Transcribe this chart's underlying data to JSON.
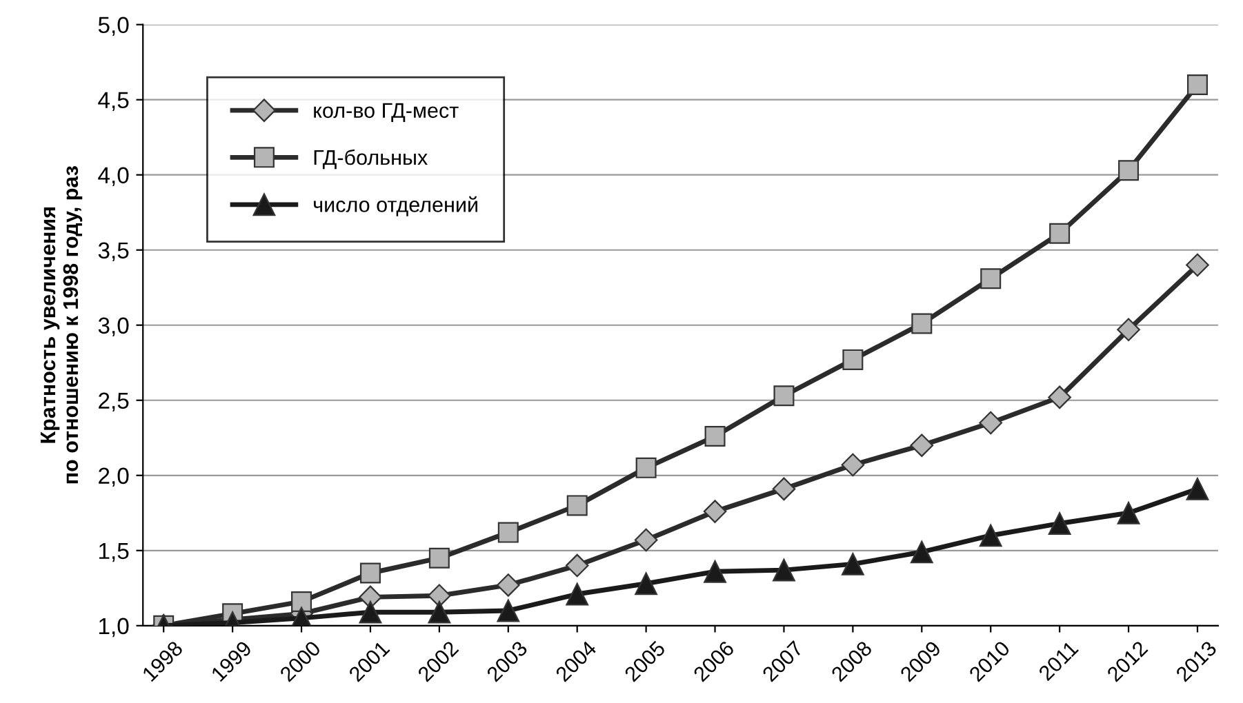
{
  "chart_data": {
    "type": "line",
    "ylabel": "Кратность увеличения\nпо отношению к 1998 году, раз",
    "categories": [
      "1998",
      "1999",
      "2000",
      "2001",
      "2002",
      "2003",
      "2004",
      "2005",
      "2006",
      "2007",
      "2008",
      "2009",
      "2010",
      "2011",
      "2012",
      "2013"
    ],
    "series": [
      {
        "name": "кол-во ГД-мест",
        "color": "#2b2b2b",
        "marker": "diamond",
        "values": [
          1.0,
          1.04,
          1.08,
          1.19,
          1.2,
          1.27,
          1.4,
          1.57,
          1.76,
          1.91,
          2.07,
          2.2,
          2.35,
          2.52,
          2.97,
          3.4
        ]
      },
      {
        "name": "ГД-больных",
        "color": "#2b2b2b",
        "marker": "square",
        "values": [
          1.0,
          1.08,
          1.16,
          1.35,
          1.45,
          1.62,
          1.8,
          2.05,
          2.26,
          2.53,
          2.77,
          3.01,
          3.31,
          3.61,
          4.03,
          4.6
        ]
      },
      {
        "name": "число отделений",
        "color": "#1a1a1a",
        "marker": "triangle",
        "values": [
          1.0,
          1.02,
          1.05,
          1.09,
          1.09,
          1.1,
          1.21,
          1.28,
          1.36,
          1.37,
          1.41,
          1.49,
          1.6,
          1.68,
          1.75,
          1.91
        ]
      }
    ],
    "ylim": [
      1.0,
      5.0
    ],
    "yticks": [
      {
        "value": 1.0,
        "label": "1,0"
      },
      {
        "value": 1.5,
        "label": "1,5"
      },
      {
        "value": 2.0,
        "label": "2,0"
      },
      {
        "value": 2.5,
        "label": "2,5"
      },
      {
        "value": 3.0,
        "label": "3,0"
      },
      {
        "value": 3.5,
        "label": "3,5"
      },
      {
        "value": 4.0,
        "label": "4,0"
      },
      {
        "value": 4.5,
        "label": "4,5"
      },
      {
        "value": 5.0,
        "label": "5,0"
      }
    ],
    "grid": "y",
    "legend": "top left",
    "line_style": "solid"
  }
}
